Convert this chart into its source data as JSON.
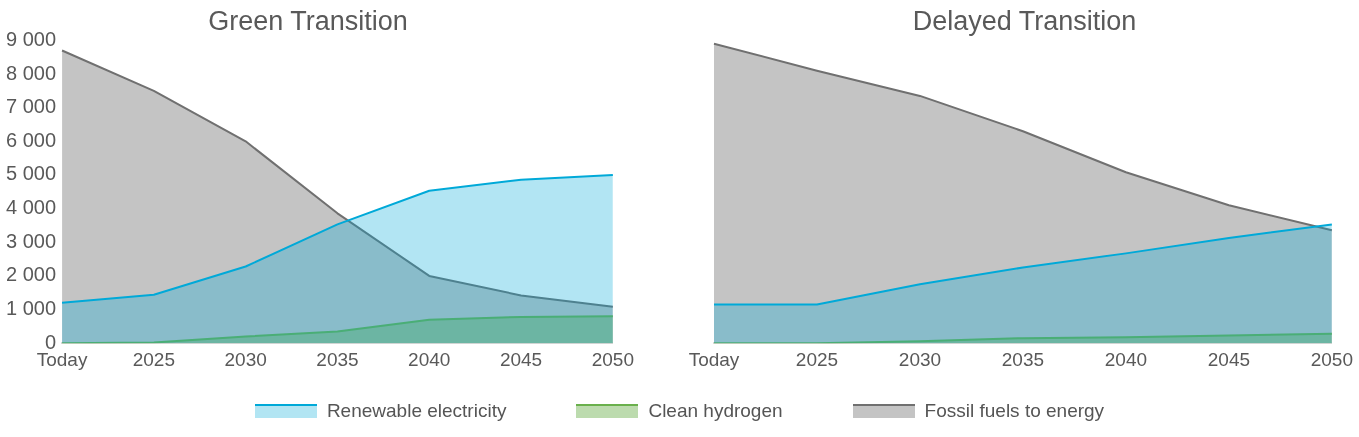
{
  "chart_data": [
    {
      "type": "area",
      "title": "Green Transition",
      "categories": [
        "Today",
        "2025",
        "2030",
        "2035",
        "2040",
        "2045",
        "2050"
      ],
      "series": [
        {
          "name": "Renewable electricity",
          "color": "#00a9d8",
          "values": [
            1200,
            1440,
            2280,
            3530,
            4530,
            4860,
            5000
          ]
        },
        {
          "name": "Clean hydrogen",
          "color": "#6ab04c",
          "values": [
            0,
            20,
            200,
            350,
            700,
            780,
            800
          ]
        },
        {
          "name": "Fossil fuels to energy",
          "color": "#707070",
          "values": [
            8700,
            7500,
            6000,
            3860,
            2000,
            1420,
            1080
          ]
        }
      ],
      "ylim": [
        0,
        9000
      ],
      "yticks": [
        {
          "value": 0,
          "label": "0"
        },
        {
          "value": 1000,
          "label": "1 000"
        },
        {
          "value": 2000,
          "label": "2 000"
        },
        {
          "value": 3000,
          "label": "3 000"
        },
        {
          "value": 4000,
          "label": "4 000"
        },
        {
          "value": 5000,
          "label": "5 000"
        },
        {
          "value": 6000,
          "label": "6 000"
        },
        {
          "value": 7000,
          "label": "7 000"
        },
        {
          "value": 8000,
          "label": "8 000"
        },
        {
          "value": 9000,
          "label": "9 000"
        }
      ],
      "grid": false,
      "marker": "none",
      "legend": "bottom"
    },
    {
      "type": "area",
      "title": "Delayed Transition",
      "categories": [
        "Today",
        "2025",
        "2030",
        "2035",
        "2040",
        "2045",
        "2050"
      ],
      "series": [
        {
          "color": "#00a9d8",
          "values": [
            1150,
            1150,
            1750,
            2250,
            2670,
            3130,
            3530
          ]
        },
        {
          "color": "#6ab04c",
          "values": [
            0,
            0,
            60,
            150,
            180,
            230,
            280
          ]
        },
        {
          "color": "#707070",
          "values": [
            8900,
            8100,
            7350,
            6300,
            5080,
            4100,
            3360
          ]
        }
      ],
      "ylim": [
        0,
        9000
      ],
      "grid": false,
      "marker": "none",
      "tick_labels": "x",
      "legend": false
    }
  ]
}
